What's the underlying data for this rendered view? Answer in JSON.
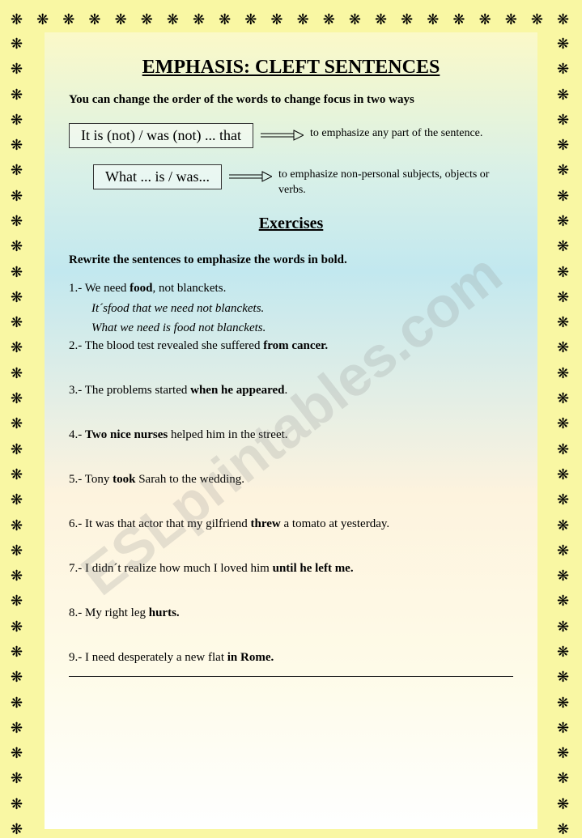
{
  "watermark": "ESLprintables.com",
  "border_glyph": "❋",
  "title": "EMPHASIS: CLEFT SENTENCES",
  "intro": "You can change the order of the words to change focus in two ways",
  "pattern1": {
    "box": "It is (not) / was (not) ... that",
    "desc": "to emphasize any part of the sentence."
  },
  "pattern2": {
    "box": "What ... is / was...",
    "desc": "to emphasize non-personal subjects, objects or verbs."
  },
  "exercises_heading": "Exercises",
  "instruction": "Rewrite the sentences to emphasize the words in bold.",
  "questions": {
    "q1_pre": "1.- We need ",
    "q1_b": "food",
    "q1_post": ", not blanckets.",
    "q1_ans1": "It´sfood that we need not blanckets.",
    "q1_ans2": "What we need is food not blanckets.",
    "q2_pre": "2.- The blood test revealed she suffered ",
    "q2_b": "from cancer.",
    "q3_pre": "3.- The problems started ",
    "q3_b": "when he appeared",
    "q3_post": ".",
    "q4_pre": "4.- ",
    "q4_b": "Two nice nurses",
    "q4_post": " helped him in the street.",
    "q5_pre": "5.- Tony ",
    "q5_b": "took",
    "q5_post": " Sarah to the wedding.",
    "q6_pre": "6.- It was that actor that my gilfriend ",
    "q6_b": "threw",
    "q6_post": " a tomato at yesterday.",
    "q7_pre": "7.- I didn´t realize how much I loved him ",
    "q7_b": "until he left me.",
    "q8_pre": "8.- My right leg ",
    "q8_b": "hurts.",
    "q9_pre": "9.- I need desperately a new flat ",
    "q9_b": "in Rome."
  }
}
